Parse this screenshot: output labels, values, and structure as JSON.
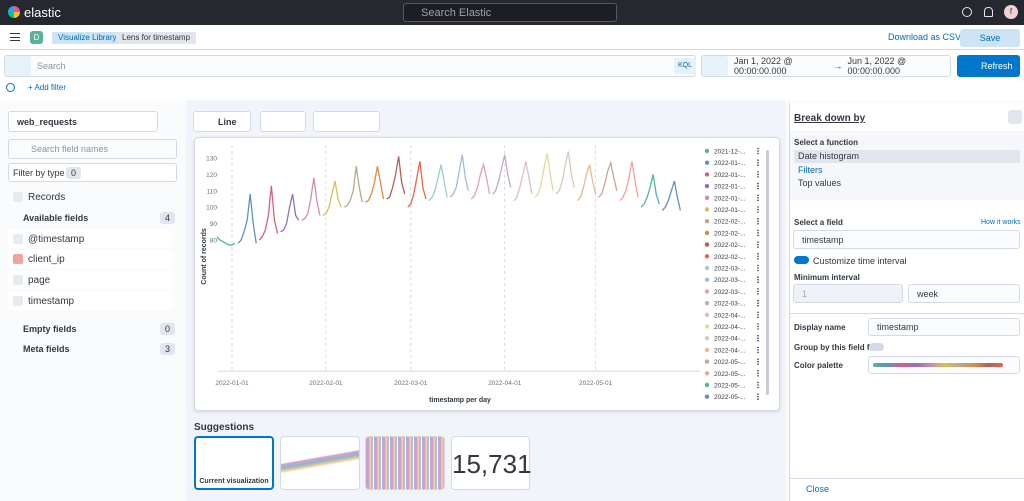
{
  "header": {
    "logo": "elastic",
    "search_placeholder": "Search Elastic",
    "avatar": "f"
  },
  "nav": {
    "space": "D",
    "breadcrumbs": [
      "Visualize Library",
      "Lens for timestamp"
    ],
    "download": "Download as CSV",
    "save": "Save"
  },
  "query": {
    "placeholder": "Search",
    "language": "KQL",
    "date_start": "Jan 1, 2022 @ 00:00:00.000",
    "arrow": "→",
    "date_end": "Jun 1, 2022 @ 00:00:00.000",
    "refresh": "Refresh",
    "add_filter": "+ Add filter"
  },
  "sidebar": {
    "index": "web_requests",
    "search_placeholder": "Search field names",
    "filter_label": "Filter by type",
    "filter_count": 0,
    "records": "Records",
    "available": {
      "label": "Available fields",
      "count": 4,
      "fields": [
        "@timestamp",
        "client_ip",
        "page",
        "timestamp"
      ]
    },
    "empty": {
      "label": "Empty fields",
      "count": 0
    },
    "meta": {
      "label": "Meta fields",
      "count": 3
    }
  },
  "toolbar": {
    "chart_type": "Line"
  },
  "chart_data": {
    "type": "line",
    "y_label": "Count of records",
    "x_label": "timestamp per day",
    "grid": "x",
    "ylim": [
      0,
      140
    ],
    "yticks": [
      80,
      90,
      100,
      110,
      120,
      130
    ],
    "xticks": [
      "2022-01-01",
      "2022-02-01",
      "2022-03-01",
      "2022-04-01",
      "2022-05-01"
    ],
    "series": [
      {
        "name": "2021-12-...",
        "color": "#54b399",
        "values": [
          82,
          80,
          79,
          78,
          77,
          77,
          78
        ]
      },
      {
        "name": "2022-01-...",
        "color": "#6092c0",
        "values": [
          78,
          80,
          85,
          92,
          108,
          90,
          78
        ]
      },
      {
        "name": "2022-01-...",
        "color": "#d36086",
        "values": [
          80,
          82,
          86,
          95,
          113,
          92,
          84
        ]
      },
      {
        "name": "2022-01-...",
        "color": "#9170b8",
        "values": [
          85,
          86,
          90,
          100,
          108,
          95,
          92
        ]
      },
      {
        "name": "2022-01-...",
        "color": "#ca8eae",
        "values": [
          92,
          93,
          96,
          105,
          118,
          104,
          95
        ]
      },
      {
        "name": "2022-01-...",
        "color": "#d6bf57",
        "values": [
          95,
          96,
          100,
          108,
          116,
          105,
          100
        ]
      },
      {
        "name": "2022-02-...",
        "color": "#b9a888",
        "values": [
          100,
          101,
          104,
          110,
          125,
          112,
          103
        ]
      },
      {
        "name": "2022-02-...",
        "color": "#da8b45",
        "values": [
          103,
          104,
          108,
          115,
          125,
          115,
          105
        ]
      },
      {
        "name": "2022-02-...",
        "color": "#aa6556",
        "values": [
          105,
          106,
          112,
          120,
          131,
          115,
          108
        ]
      },
      {
        "name": "2022-02-...",
        "color": "#e7664c",
        "values": [
          100,
          102,
          108,
          118,
          128,
          112,
          105
        ]
      },
      {
        "name": "2022-03-...",
        "color": "#98d1c1",
        "values": [
          104,
          106,
          110,
          118,
          126,
          116,
          106
        ]
      },
      {
        "name": "2022-03-...",
        "color": "#a0bddb",
        "values": [
          106,
          108,
          112,
          122,
          132,
          118,
          110
        ]
      },
      {
        "name": "2022-03-...",
        "color": "#e6a0b6",
        "values": [
          105,
          107,
          112,
          120,
          126,
          118,
          108
        ]
      },
      {
        "name": "2022-03-...",
        "color": "#bda9d4",
        "values": [
          108,
          110,
          116,
          124,
          132,
          120,
          112
        ]
      },
      {
        "name": "2022-04-...",
        "color": "#dfbbce",
        "values": [
          104,
          106,
          112,
          120,
          128,
          118,
          108
        ]
      },
      {
        "name": "2022-04-...",
        "color": "#e6d89a",
        "values": [
          106,
          108,
          114,
          124,
          133,
          120,
          110
        ]
      },
      {
        "name": "2022-04-...",
        "color": "#d5cbb8",
        "values": [
          108,
          110,
          116,
          126,
          134,
          120,
          112
        ]
      },
      {
        "name": "2022-04-...",
        "color": "#e9b98f",
        "values": [
          104,
          106,
          112,
          120,
          126,
          116,
          108
        ]
      },
      {
        "name": "2022-05-...",
        "color": "#cda39a",
        "values": [
          106,
          108,
          114,
          122,
          127,
          118,
          110
        ]
      },
      {
        "name": "2022-05-...",
        "color": "#f0a494",
        "values": [
          104,
          106,
          110,
          118,
          128,
          116,
          106
        ]
      },
      {
        "name": "2022-05-...",
        "color": "#54b399",
        "values": [
          100,
          102,
          106,
          112,
          120,
          108,
          102
        ]
      },
      {
        "name": "2022-05-...",
        "color": "#6092c0",
        "values": [
          98,
          100,
          104,
          110,
          116,
          106,
          98
        ]
      }
    ]
  },
  "suggestions": {
    "title": "Suggestions",
    "current": "Current visualization",
    "metric": "15,731"
  },
  "panel": {
    "title": "Break down by",
    "function_label": "Select a function",
    "functions": [
      "Date histogram",
      "Filters",
      "Top values"
    ],
    "field_label": "Select a field",
    "help": "How it works",
    "field": "timestamp",
    "customize": "Customize time interval",
    "interval_label": "Minimum interval",
    "interval_value": 1,
    "interval_unit": "week",
    "display_name_label": "Display name",
    "display_name": "timestamp",
    "group_label": "Group by this field first",
    "palette_label": "Color palette",
    "close": "Close"
  }
}
